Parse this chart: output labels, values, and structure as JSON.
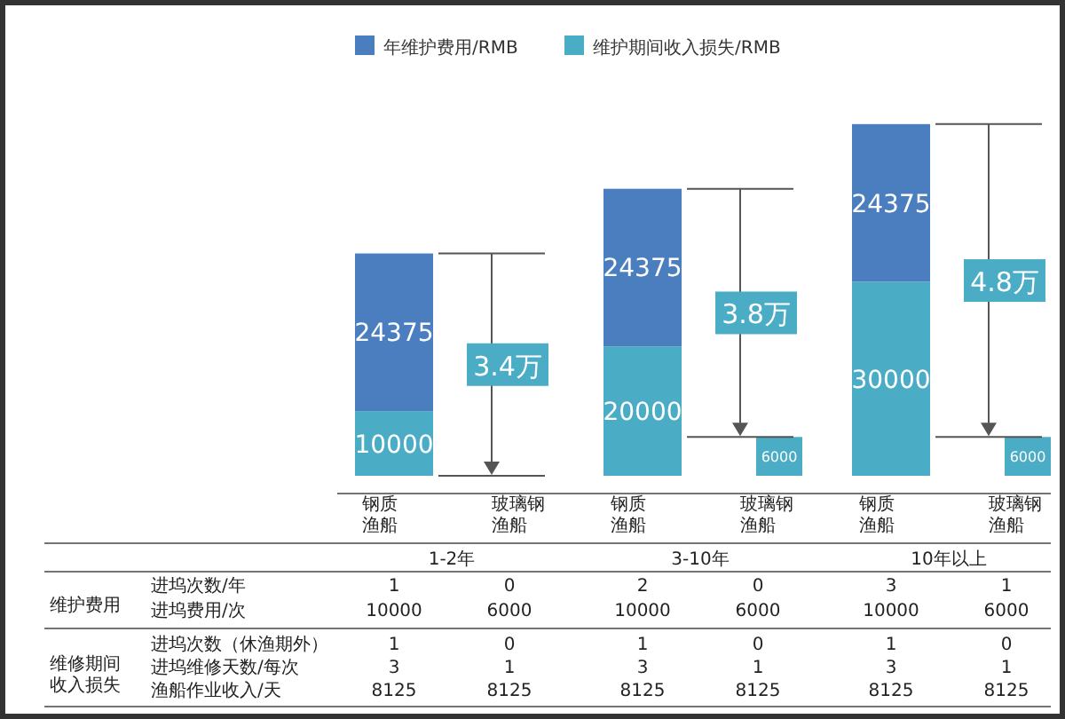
{
  "chart_data": {
    "type": "bar",
    "stacked": true,
    "legend": "top",
    "categories": [
      "钢质渔船",
      "玻璃钢渔船",
      "钢质渔船",
      "玻璃钢渔船",
      "钢质渔船",
      "玻璃钢渔船"
    ],
    "series": [
      {
        "name": "维护期间收入损失/RMB",
        "color": "#4bacc6",
        "values": [
          10000,
          null,
          20000,
          6000,
          30000,
          6000
        ],
        "value_labels": [
          "10000",
          null,
          "20000",
          "6000",
          "30000",
          "6000"
        ]
      },
      {
        "name": "年维护费用/RMB",
        "color": "#4a7ebf",
        "values": [
          24375,
          null,
          24375,
          null,
          24375,
          null
        ],
        "value_labels": [
          "24375",
          null,
          "24375",
          null,
          "24375",
          null
        ]
      }
    ],
    "annotations": [
      "3.4万",
      "3.8万",
      "4.8万",
      "1-2年",
      "3-10年",
      "10年以上",
      "维护费用",
      "维修期间",
      "收入损失",
      "进坞次数/年",
      "1",
      "0",
      "2",
      "0",
      "3",
      "1",
      "进坞费用/次",
      "10000",
      "6000",
      "10000",
      "6000",
      "10000",
      "6000",
      "进坞次数（休渔期外）",
      "1",
      "0",
      "1",
      "0",
      "1",
      "0",
      "进坞维修天数/每次",
      "3",
      "1",
      "3",
      "1",
      "3",
      "1",
      "渔船作业收入/天",
      "8125",
      "8125",
      "8125",
      "8125",
      "8125",
      "8125"
    ]
  }
}
